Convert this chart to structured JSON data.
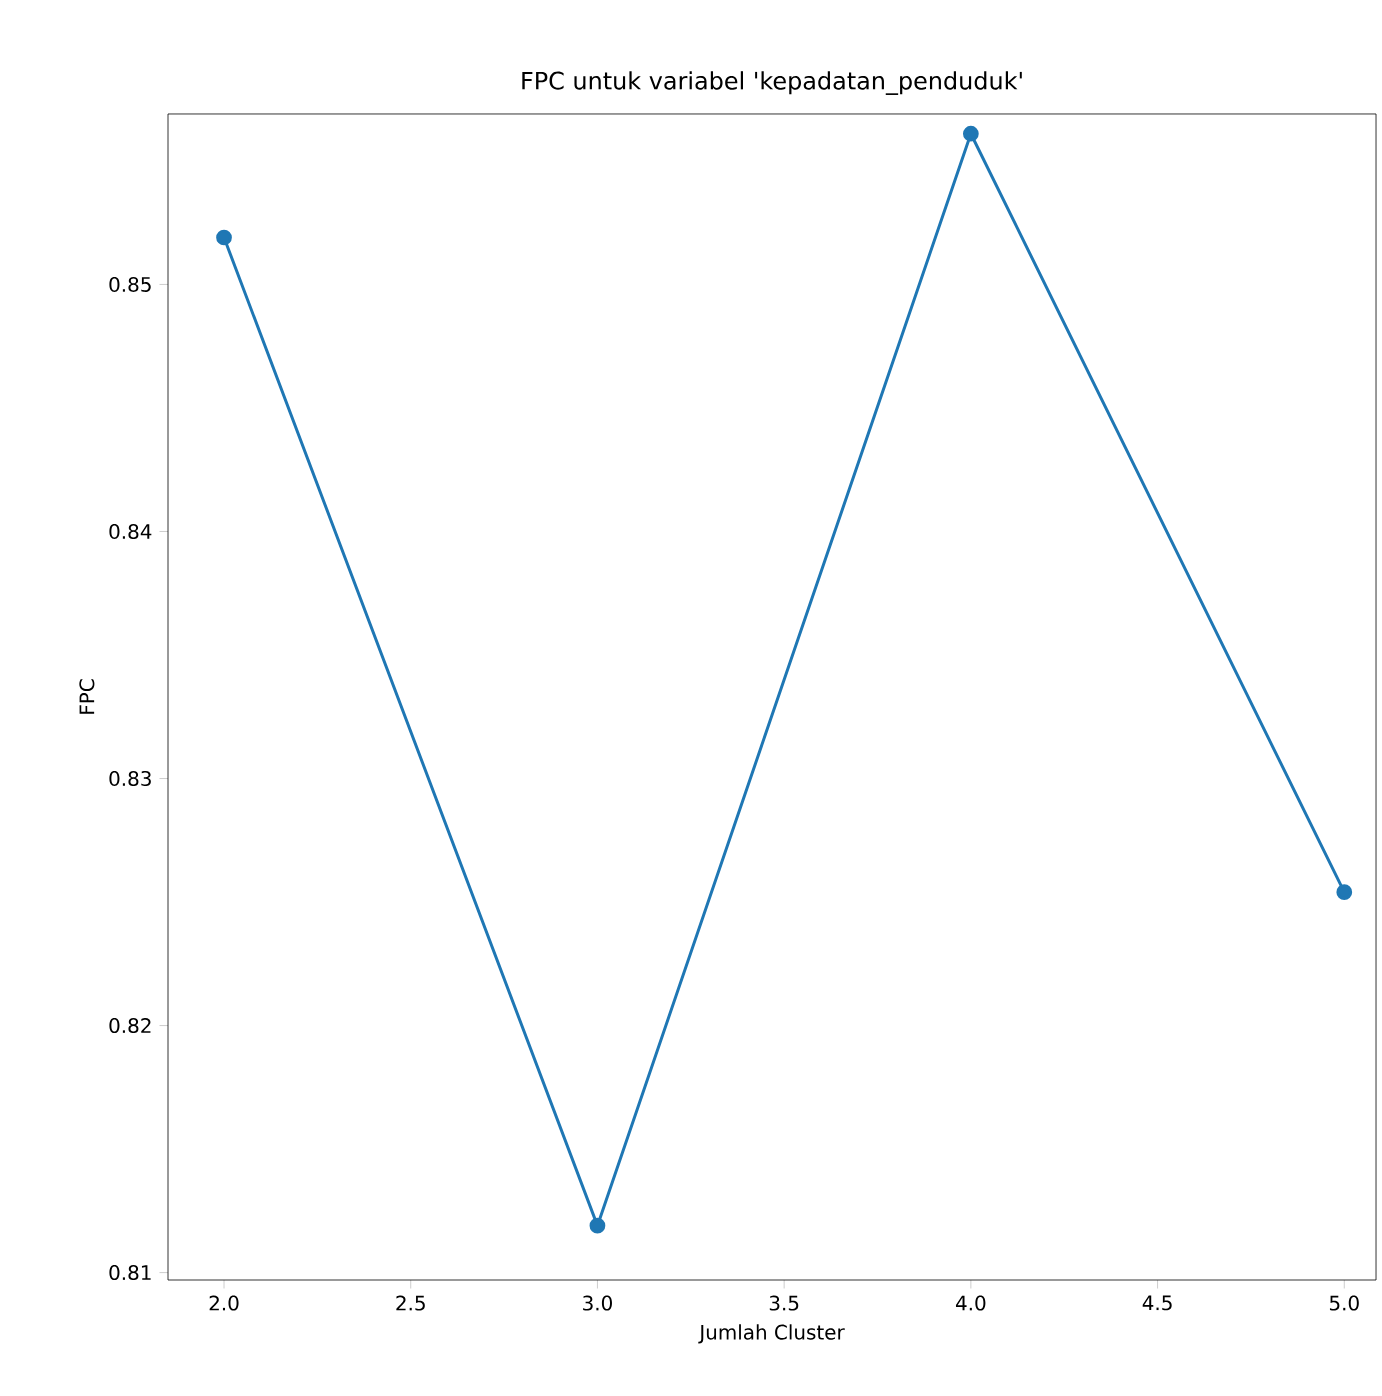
{
  "chart_data": {
    "type": "line",
    "title": "FPC untuk variabel 'kepadatan_penduduk'",
    "xlabel": "Jumlah Cluster",
    "ylabel": "FPC",
    "x": [
      2,
      3,
      4,
      5
    ],
    "series": [
      {
        "color": "#1f77b4",
        "values": [
          0.8519,
          0.8119,
          0.8561,
          0.8254
        ]
      }
    ],
    "marker": "circle",
    "line_style": "solid",
    "xlim": [
      1.85,
      5.085
    ],
    "xticks": [
      {
        "value": 2,
        "label": "2.0"
      },
      {
        "value": 2.5,
        "label": "2.5"
      },
      {
        "value": 3,
        "label": "3.0"
      },
      {
        "value": 3.5,
        "label": "3.5"
      },
      {
        "value": 4,
        "label": "4.0"
      },
      {
        "value": 4.5,
        "label": "4.5"
      },
      {
        "value": 5,
        "label": "5.0"
      }
    ],
    "ylim": [
      0.8097,
      0.8569
    ],
    "yticks": [
      0.81,
      0.82,
      0.83,
      0.84,
      0.85
    ]
  }
}
